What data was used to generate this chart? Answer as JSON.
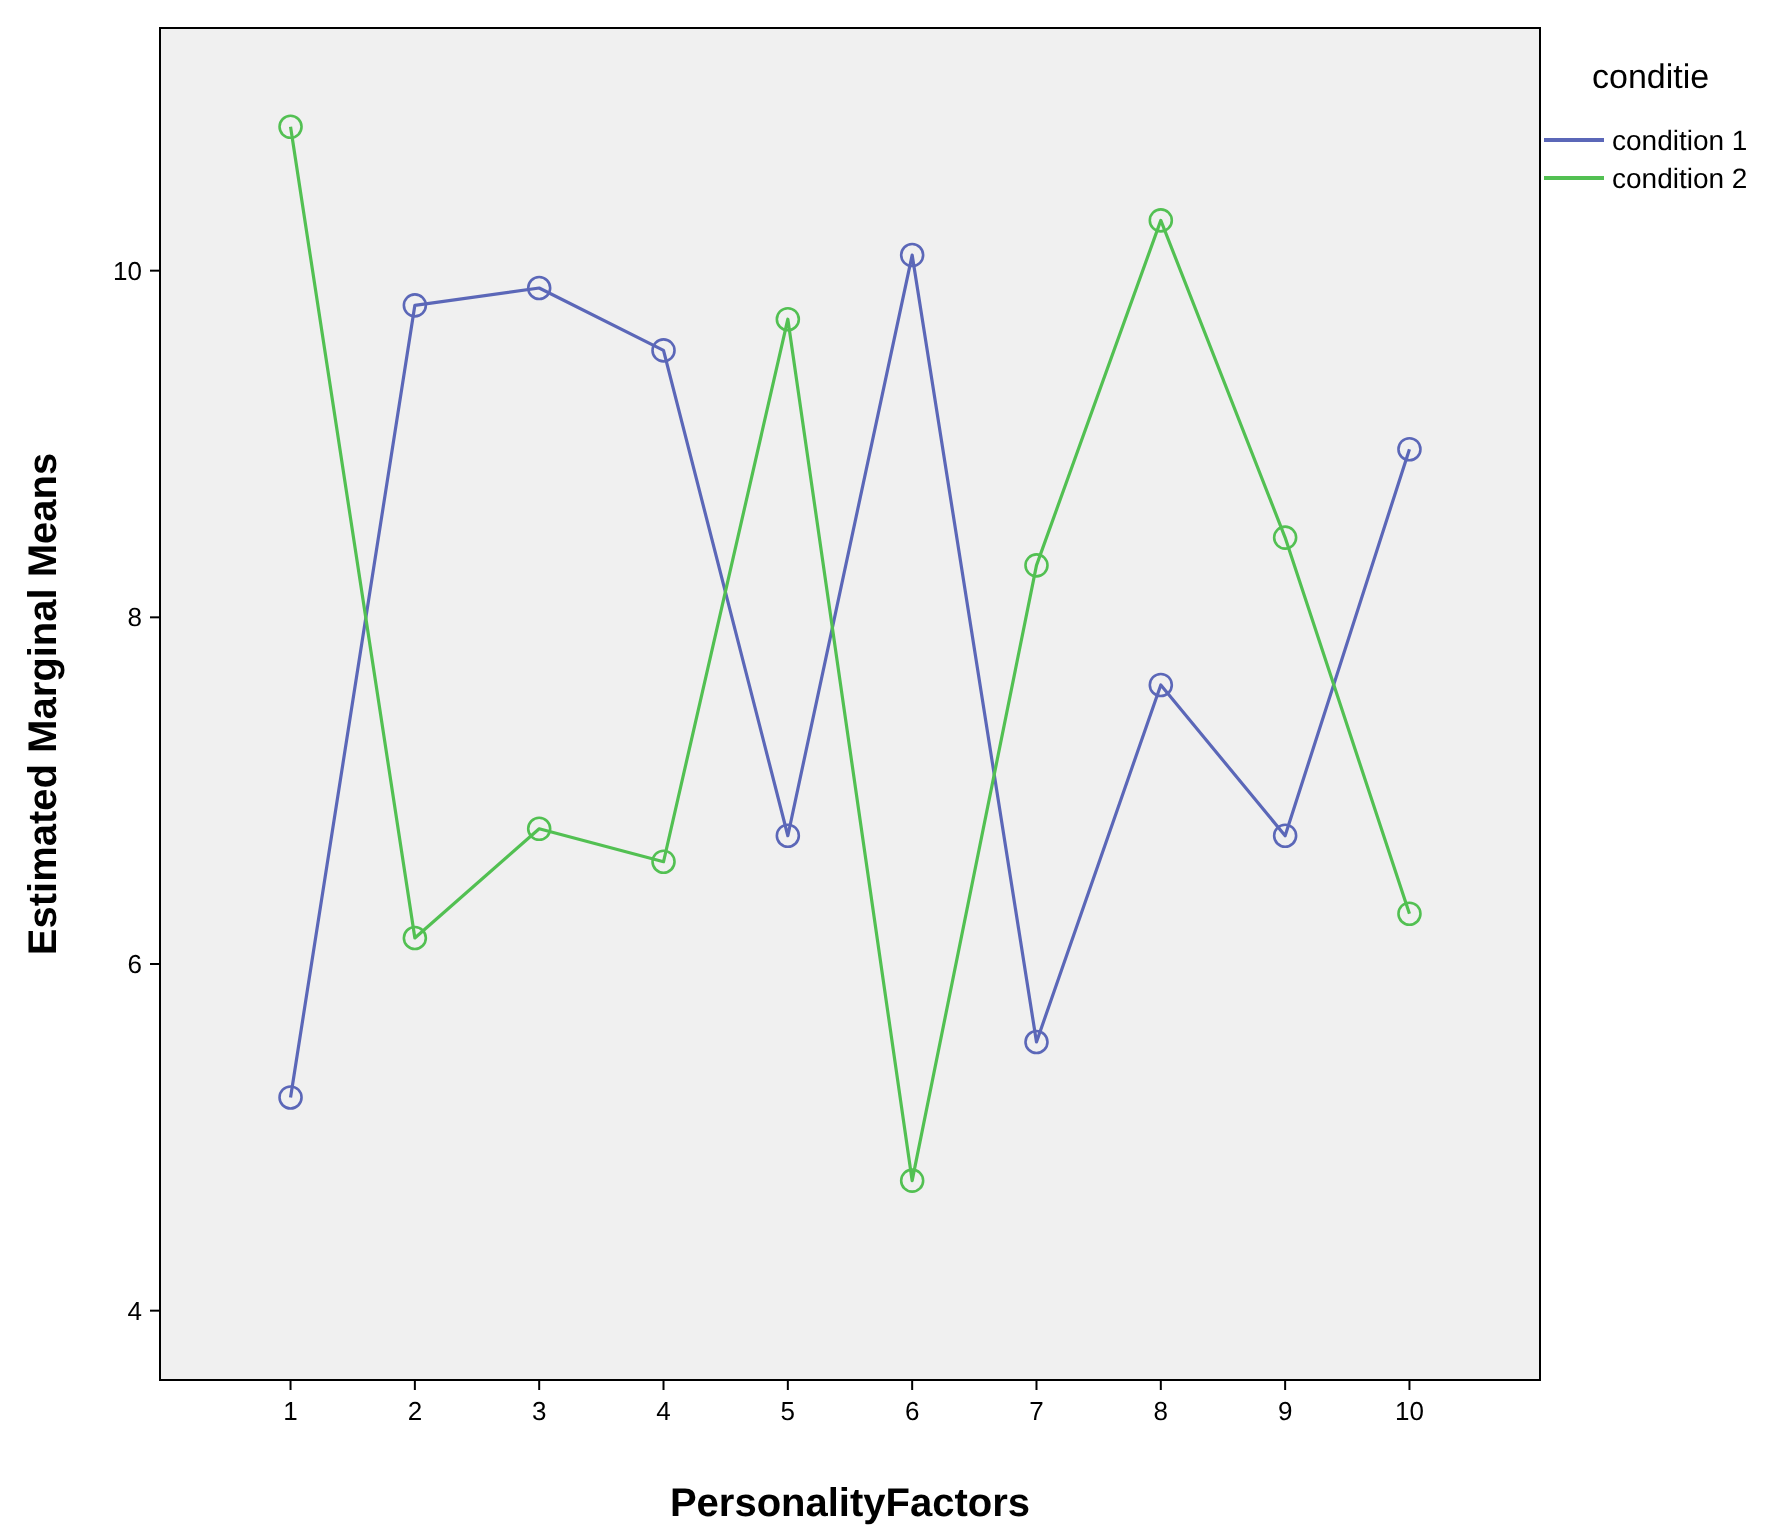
{
  "chart_data": {
    "type": "line",
    "xlabel": "PersonalityFactors",
    "ylabel": "Estimated Marginal Means",
    "legend_title": "conditie",
    "categories": [
      "1",
      "2",
      "3",
      "4",
      "5",
      "6",
      "7",
      "8",
      "9",
      "10"
    ],
    "series": [
      {
        "name": "condition 1",
        "color": "#5b67b8",
        "values": [
          5.23,
          9.8,
          9.9,
          9.54,
          6.74,
          10.09,
          5.55,
          7.61,
          6.74,
          8.97
        ]
      },
      {
        "name": "condition 2",
        "color": "#52c052",
        "values": [
          10.83,
          6.15,
          6.78,
          6.59,
          9.72,
          4.75,
          8.3,
          10.29,
          8.46,
          6.29
        ]
      }
    ],
    "ylim": [
      3.6,
      11.4
    ],
    "yticks": [
      4,
      6,
      8,
      10
    ],
    "grid": false,
    "legend": "top right",
    "marker": "circle",
    "line_style": "solid"
  }
}
